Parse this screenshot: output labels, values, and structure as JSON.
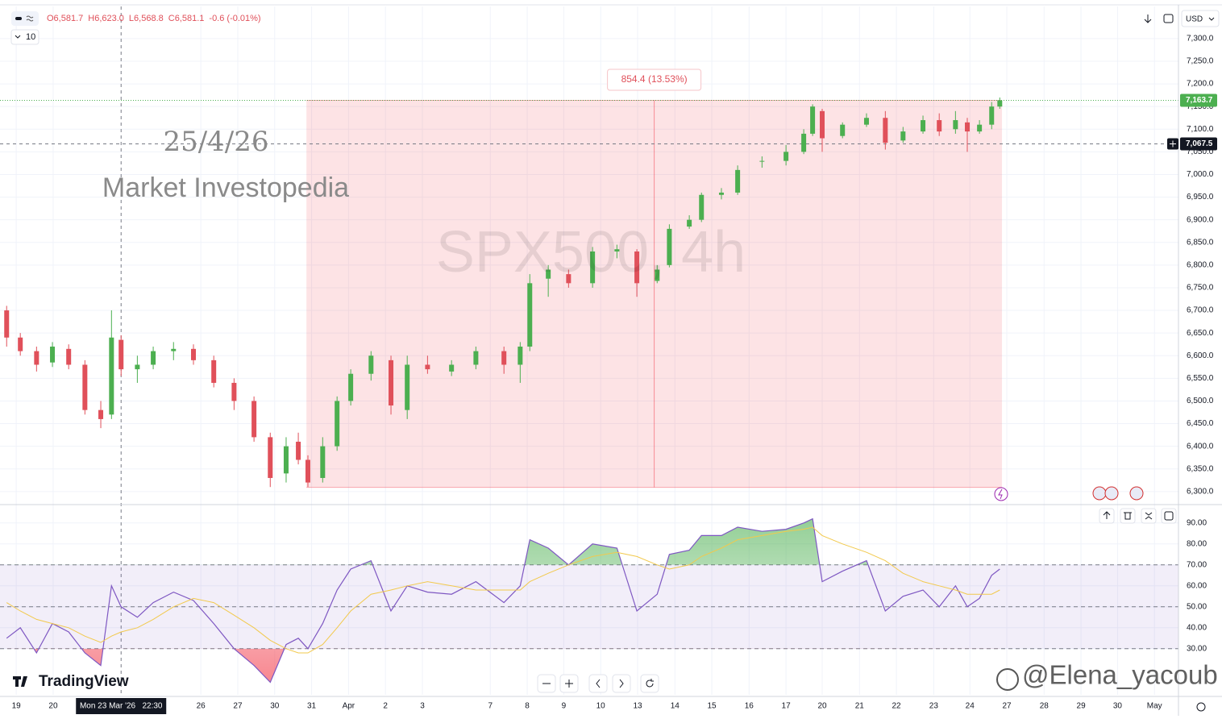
{
  "header": {
    "quote": [
      "O6,581.7",
      "H6,623.0",
      "L6,568.8",
      "C6,581.1",
      "-0.6 (-0.01%)"
    ],
    "interval_count": "10",
    "currency": "USD"
  },
  "watermarks": {
    "date": "25/4/26",
    "brand": "Market Investopedia",
    "symbol": "SPX500, 4h",
    "author": "@Elena_yacoub",
    "logo": "TradingView"
  },
  "chart_data": [
    {
      "type": "candlestick",
      "grid": true,
      "up_color": "#4caf50",
      "down_color": "#e0505a",
      "x": [
        -0.26,
        0.11,
        0.55,
        0.98,
        1.42,
        1.86,
        2.29,
        2.58,
        2.84,
        3.28,
        3.71,
        4.26,
        4.8,
        5.35,
        5.9,
        6.44,
        6.88,
        7.31,
        7.64,
        7.9,
        8.3,
        8.69,
        9.06,
        9.61,
        10.15,
        10.59,
        11.14,
        11.79,
        12.45,
        13.21,
        13.65,
        13.91,
        14.41,
        14.96,
        15.61,
        16.27,
        16.81,
        17.36,
        17.69,
        18.23,
        18.56,
        19.1,
        19.54,
        20.2,
        20.85,
        21.33,
        21.57,
        21.83,
        22.38,
        23.03,
        23.54,
        24.02,
        24.56,
        25.0,
        25.44,
        25.76,
        26.09,
        26.42,
        26.64
      ],
      "open": [
        6700,
        6640,
        6610,
        6585,
        6615,
        6580,
        6480,
        6470,
        6635,
        6570,
        6580,
        6610,
        6615,
        6590,
        6540,
        6500,
        6420,
        6340,
        6410,
        6370,
        6330,
        6400,
        6500,
        6560,
        6590,
        6480,
        6580,
        6565,
        6580,
        6610,
        6580,
        6620,
        6770,
        6780,
        6760,
        6830,
        6830,
        6765,
        6800,
        6885,
        6900,
        6955,
        6960,
        7030,
        7030,
        7050,
        7090,
        7140,
        7085,
        7110,
        7125,
        7075,
        7095,
        7120,
        7100,
        7115,
        7095,
        7110,
        7150
      ],
      "high": [
        6710,
        6650,
        6620,
        6630,
        6625,
        6590,
        6500,
        6700,
        6645,
        6600,
        6620,
        6630,
        6625,
        6600,
        6550,
        6510,
        6430,
        6420,
        6430,
        6380,
        6420,
        6510,
        6570,
        6610,
        6600,
        6600,
        6600,
        6590,
        6620,
        6620,
        6630,
        6780,
        6800,
        6790,
        6840,
        6845,
        6835,
        6800,
        6890,
        6910,
        6960,
        6970,
        7020,
        7040,
        7065,
        7100,
        7155,
        7145,
        7115,
        7135,
        7140,
        7105,
        7130,
        7135,
        7140,
        7125,
        7120,
        7160,
        7170
      ],
      "low": [
        6620,
        6600,
        6565,
        6575,
        6570,
        6470,
        6440,
        6460,
        6555,
        6540,
        6570,
        6590,
        6580,
        6530,
        6480,
        6410,
        6310,
        6320,
        6360,
        6310,
        6320,
        6390,
        6490,
        6545,
        6470,
        6460,
        6560,
        6555,
        6570,
        6560,
        6540,
        6610,
        6730,
        6750,
        6750,
        6815,
        6730,
        6760,
        6795,
        6880,
        6895,
        6945,
        6955,
        7015,
        7020,
        7045,
        7085,
        7050,
        7080,
        7105,
        7055,
        7070,
        7090,
        7085,
        7090,
        7050,
        7090,
        7100,
        7145
      ],
      "close": [
        6640,
        6610,
        6580,
        6620,
        6580,
        6480,
        6460,
        6640,
        6570,
        6580,
        6610,
        6615,
        6590,
        6540,
        6500,
        6420,
        6330,
        6400,
        6370,
        6320,
        6400,
        6500,
        6560,
        6600,
        6490,
        6580,
        6570,
        6580,
        6610,
        6580,
        6620,
        6760,
        6790,
        6760,
        6830,
        6835,
        6760,
        6790,
        6880,
        6900,
        6955,
        6960,
        7010,
        7030,
        7050,
        7090,
        7150,
        7080,
        7110,
        7125,
        7070,
        7095,
        7120,
        7095,
        7120,
        7095,
        7110,
        7150,
        7163.7
      ],
      "xlim": [
        -0.44,
        31.48
      ],
      "ylim": [
        6273,
        7371
      ],
      "yticks": [
        {
          "value": 6300,
          "label": "6,300.0"
        },
        {
          "value": 6350,
          "label": "6,350.0"
        },
        {
          "value": 6400,
          "label": "6,400.0"
        },
        {
          "value": 6450,
          "label": "6,450.0"
        },
        {
          "value": 6500,
          "label": "6,500.0"
        },
        {
          "value": 6550,
          "label": "6,550.0"
        },
        {
          "value": 6600,
          "label": "6,600.0"
        },
        {
          "value": 6650,
          "label": "6,650.0"
        },
        {
          "value": 6700,
          "label": "6,700.0"
        },
        {
          "value": 6750,
          "label": "6,750.0"
        },
        {
          "value": 6800,
          "label": "6,800.0"
        },
        {
          "value": 6850,
          "label": "6,850.0"
        },
        {
          "value": 6900,
          "label": "6,900.0"
        },
        {
          "value": 6950,
          "label": "6,950.0"
        },
        {
          "value": 7000,
          "label": "7,000.0"
        },
        {
          "value": 7050,
          "label": "7,050.0"
        },
        {
          "value": 7100,
          "label": "7,100.0"
        },
        {
          "value": 7150,
          "label": "7,150.0"
        },
        {
          "value": 7200,
          "label": "7,200.0"
        },
        {
          "value": 7250,
          "label": "7,250.0"
        },
        {
          "value": 7300,
          "label": "7,300.0"
        }
      ],
      "xticks": [
        {
          "value": 0,
          "label": "19"
        },
        {
          "value": 1,
          "label": "20"
        },
        {
          "value": 5,
          "label": "26"
        },
        {
          "value": 6,
          "label": "27"
        },
        {
          "value": 7,
          "label": "30"
        },
        {
          "value": 8,
          "label": "31"
        },
        {
          "value": 9,
          "label": "Apr"
        },
        {
          "value": 10,
          "label": "2"
        },
        {
          "value": 11,
          "label": "3"
        },
        {
          "value": 12.84,
          "label": "7"
        },
        {
          "value": 13.84,
          "label": "8"
        },
        {
          "value": 14.83,
          "label": "9"
        },
        {
          "value": 15.83,
          "label": "10"
        },
        {
          "value": 16.83,
          "label": "13"
        },
        {
          "value": 17.84,
          "label": "14"
        },
        {
          "value": 18.84,
          "label": "15"
        },
        {
          "value": 19.85,
          "label": "16"
        },
        {
          "value": 20.85,
          "label": "17"
        },
        {
          "value": 21.83,
          "label": "20"
        },
        {
          "value": 22.84,
          "label": "21"
        },
        {
          "value": 23.84,
          "label": "22"
        },
        {
          "value": 24.85,
          "label": "23"
        },
        {
          "value": 25.83,
          "label": "24"
        },
        {
          "value": 26.83,
          "label": "27"
        },
        {
          "value": 27.84,
          "label": "28"
        },
        {
          "value": 28.84,
          "label": "29"
        },
        {
          "value": 29.83,
          "label": "30"
        },
        {
          "value": 30.83,
          "label": "May"
        }
      ],
      "last_price": {
        "value": 7163.7,
        "label": "7,163.7"
      },
      "crosshair": {
        "x": 2.84,
        "x_label": "Mon 23 Mar '26   22:30",
        "y": 7067.5,
        "y_label": "7,067.5"
      },
      "range": {
        "x_start": 7.86,
        "x_end": 26.7,
        "from": 6309.3,
        "to": 7163.7,
        "label": "854.4 (13.53%)"
      }
    },
    {
      "type": "line",
      "grid": true,
      "x": [
        -0.26,
        0.11,
        0.55,
        0.98,
        1.42,
        1.86,
        2.29,
        2.58,
        2.84,
        3.28,
        3.71,
        4.26,
        4.8,
        5.35,
        5.9,
        6.44,
        6.88,
        7.31,
        7.64,
        7.9,
        8.3,
        8.69,
        9.06,
        9.61,
        10.15,
        10.59,
        11.14,
        11.79,
        12.45,
        13.21,
        13.65,
        13.91,
        14.41,
        14.96,
        15.61,
        16.27,
        16.81,
        17.36,
        17.69,
        18.23,
        18.56,
        19.1,
        19.54,
        20.2,
        20.85,
        21.33,
        21.57,
        21.83,
        22.38,
        23.03,
        23.54,
        24.02,
        24.56,
        25.0,
        25.44,
        25.76,
        26.09,
        26.42,
        26.64
      ],
      "series": [
        {
          "color": "#7e57c2",
          "values": [
            35,
            40,
            28,
            42,
            38,
            28,
            22,
            60,
            50,
            45,
            52,
            57,
            53,
            42,
            30,
            22,
            14,
            32,
            35,
            30,
            42,
            58,
            68,
            72,
            48,
            60,
            57,
            56,
            62,
            52,
            60,
            82,
            78,
            70,
            80,
            78,
            48,
            56,
            75,
            77,
            84,
            84,
            88,
            86,
            87,
            90,
            92,
            62,
            67,
            72,
            48,
            55,
            58,
            50,
            60,
            50,
            54,
            65,
            68
          ]
        },
        {
          "color": "#f2c94c",
          "values": [
            52,
            48,
            44,
            42,
            40,
            36,
            33,
            36,
            38,
            40,
            44,
            50,
            54,
            52,
            46,
            40,
            34,
            30,
            28,
            28,
            32,
            40,
            48,
            56,
            58,
            60,
            62,
            60,
            58,
            58,
            58,
            62,
            66,
            70,
            74,
            76,
            74,
            70,
            68,
            70,
            74,
            78,
            82,
            84,
            86,
            87,
            88,
            84,
            80,
            76,
            72,
            66,
            62,
            60,
            58,
            56,
            56,
            56,
            58
          ]
        }
      ],
      "upper_band": 70,
      "middle_band": 50,
      "lower_band": 30,
      "xlim": [
        -0.44,
        31.48
      ],
      "ylim": [
        8,
        98
      ],
      "yticks": [
        {
          "value": 30,
          "label": "30.00"
        },
        {
          "value": 40,
          "label": "40.00"
        },
        {
          "value": 50,
          "label": "50.00"
        },
        {
          "value": 60,
          "label": "60.00"
        },
        {
          "value": 70,
          "label": "70.00"
        },
        {
          "value": 80,
          "label": "80.00"
        },
        {
          "value": 90,
          "label": "90.00"
        }
      ]
    }
  ]
}
